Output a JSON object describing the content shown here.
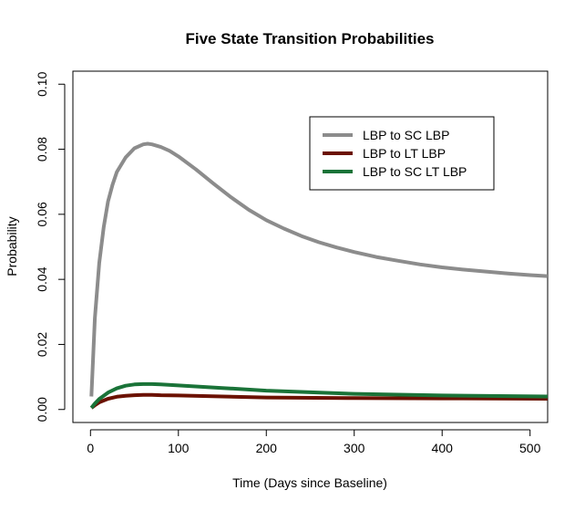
{
  "chart_data": {
    "type": "line",
    "title": "Five State Transition Probabilities",
    "xlabel": "Time (Days since Baseline)",
    "ylabel": "Probability",
    "xlim": [
      -20,
      520
    ],
    "ylim": [
      -0.004,
      0.104
    ],
    "xticks": [
      "0",
      "100",
      "200",
      "300",
      "400",
      "500"
    ],
    "yticks": [
      "0.00",
      "0.02",
      "0.04",
      "0.06",
      "0.08",
      "0.10"
    ],
    "grid": false,
    "legend_position": "top-right",
    "series": [
      {
        "name": "LBP to SC LBP",
        "color": "#8c8c8c",
        "x": [
          1,
          5,
          10,
          15,
          20,
          25,
          30,
          40,
          50,
          60,
          65,
          70,
          80,
          90,
          100,
          120,
          140,
          160,
          180,
          200,
          220,
          240,
          260,
          280,
          300,
          325,
          350,
          375,
          400,
          425,
          450,
          475,
          500,
          520
        ],
        "y": [
          0.004,
          0.028,
          0.045,
          0.056,
          0.064,
          0.069,
          0.073,
          0.0775,
          0.0803,
          0.0815,
          0.0817,
          0.0815,
          0.0807,
          0.0795,
          0.0778,
          0.0738,
          0.0694,
          0.0652,
          0.0614,
          0.0582,
          0.0556,
          0.0533,
          0.0514,
          0.0498,
          0.0484,
          0.0469,
          0.0457,
          0.0446,
          0.0437,
          0.043,
          0.0424,
          0.0418,
          0.0413,
          0.041
        ]
      },
      {
        "name": "LBP to LT LBP",
        "color": "#6b1100",
        "x": [
          1,
          5,
          10,
          20,
          30,
          40,
          50,
          60,
          70,
          80,
          100,
          150,
          200,
          300,
          400,
          520
        ],
        "y": [
          0.0005,
          0.0013,
          0.0022,
          0.0033,
          0.0039,
          0.0042,
          0.0044,
          0.0045,
          0.0045,
          0.0044,
          0.0043,
          0.004,
          0.0037,
          0.0035,
          0.0034,
          0.0033
        ]
      },
      {
        "name": "LBP to SC LT LBP",
        "color": "#1a7338",
        "x": [
          1,
          5,
          10,
          20,
          30,
          40,
          50,
          60,
          70,
          80,
          100,
          150,
          200,
          300,
          400,
          520
        ],
        "y": [
          0.0005,
          0.0018,
          0.0032,
          0.0052,
          0.0065,
          0.0073,
          0.0077,
          0.0078,
          0.0078,
          0.0077,
          0.0074,
          0.0066,
          0.0058,
          0.0048,
          0.0043,
          0.004
        ]
      }
    ]
  }
}
